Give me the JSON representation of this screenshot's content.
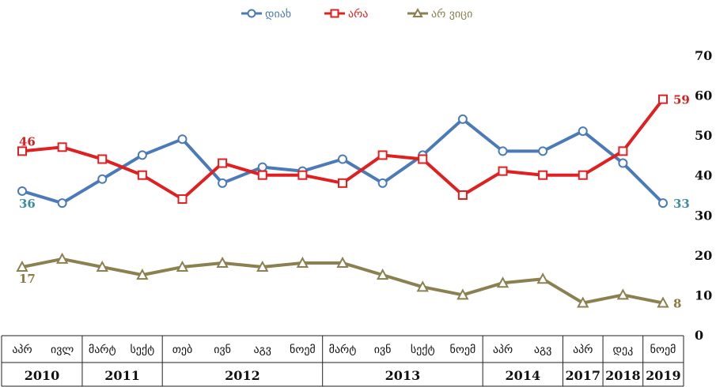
{
  "chart_data": {
    "type": "line",
    "ylim": [
      0,
      70
    ],
    "yticks": [
      0,
      10,
      20,
      30,
      40,
      50,
      60,
      70
    ],
    "grid": false,
    "legend_position": "top-center",
    "categories": [
      "აპრ 2010",
      "ივლ 2010",
      "მარტ 2011",
      "სექტ 2011",
      "თებ 2012",
      "ივნ 2012",
      "აგვ 2012",
      "ნოემ 2012",
      "მარტ 2013",
      "ივნ 2013",
      "სექტ 2013",
      "ნოემ 2013",
      "აპრ 2014",
      "აგვ 2014",
      "აპრ 2017",
      "დეკ 2018",
      "ნოემ 2019"
    ],
    "year_groups": [
      {
        "year": "2010",
        "months": [
          "აპრ",
          "ივლ"
        ]
      },
      {
        "year": "2011",
        "months": [
          "მარტ",
          "სექტ"
        ]
      },
      {
        "year": "2012",
        "months": [
          "თებ",
          "ივნ",
          "აგვ",
          "ნოემ"
        ]
      },
      {
        "year": "2013",
        "months": [
          "მარტ",
          "ივნ",
          "სექტ",
          "ნოემ"
        ]
      },
      {
        "year": "2014",
        "months": [
          "აპრ",
          "აგვ"
        ]
      },
      {
        "year": "2017",
        "months": [
          "აპრ"
        ]
      },
      {
        "year": "2018",
        "months": [
          "დეკ"
        ]
      },
      {
        "year": "2019",
        "months": [
          "ნოემ"
        ]
      }
    ],
    "series": [
      {
        "name": "დიახ",
        "color": "#4a7ab8",
        "marker": "circle",
        "values": [
          36,
          33,
          39,
          45,
          49,
          38,
          42,
          41,
          44,
          38,
          45,
          54,
          46,
          46,
          51,
          43,
          33
        ],
        "label_first": "36",
        "label_last": "33",
        "label_color": "#3d8ea0"
      },
      {
        "name": "არა",
        "color": "#e02020",
        "marker": "square",
        "values": [
          46,
          47,
          44,
          40,
          34,
          43,
          40,
          40,
          38,
          45,
          44,
          35,
          41,
          40,
          40,
          46,
          59
        ],
        "label_first": "46",
        "label_last": "59",
        "label_color": "#d42020"
      },
      {
        "name": "არ ვიცი",
        "color": "#8a8050",
        "marker": "triangle",
        "values": [
          17,
          19,
          17,
          15,
          17,
          18,
          17,
          18,
          18,
          15,
          12,
          10,
          13,
          14,
          8,
          10,
          8
        ],
        "label_first": "17",
        "label_last": "8",
        "label_color": "#8a7a40"
      }
    ]
  }
}
